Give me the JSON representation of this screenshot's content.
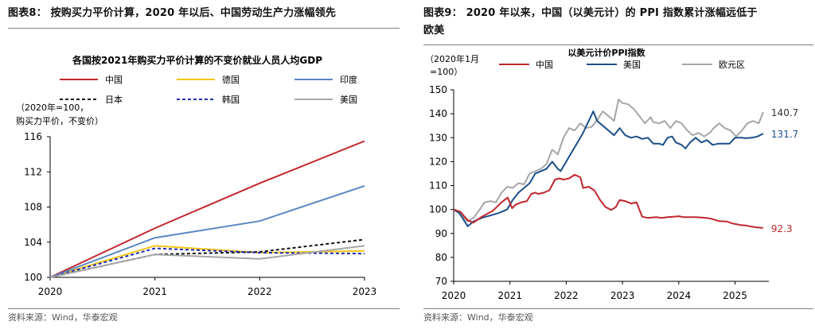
{
  "left": {
    "figure_title": "图表8：  按购买力平价计算，2020 年以后、中国劳动生产力涨幅领先",
    "source": "资料来源：Wind，华泰宏观",
    "chart_data": {
      "type": "line",
      "title": "各国按2021年购买力平价计算的不变价就业人员人均GDP",
      "unit_note": [
        "（2020年=100，",
        "购买力平价，不变价）"
      ],
      "x": [
        2020,
        2021,
        2022,
        2023
      ],
      "ylim": [
        100,
        116
      ],
      "yticks": [
        100,
        104,
        108,
        112,
        116
      ],
      "series": [
        {
          "name": "中国",
          "color": "#c0262d",
          "dash": "",
          "values": [
            100,
            105.6,
            110.7,
            115.5
          ]
        },
        {
          "name": "德国",
          "color": "#f5c518",
          "dash": "",
          "values": [
            100,
            103.6,
            102.8,
            103.0
          ]
        },
        {
          "name": "印度",
          "color": "#5b87c5",
          "dash": "",
          "values": [
            100,
            104.5,
            106.4,
            110.4
          ]
        },
        {
          "name": "日本",
          "color": "#111111",
          "dash": "4,3",
          "values": [
            100,
            102.6,
            102.9,
            104.3
          ]
        },
        {
          "name": "韩国",
          "color": "#1f2db5",
          "dash": "4,3",
          "values": [
            100,
            103.3,
            102.8,
            102.7
          ]
        },
        {
          "name": "美国",
          "color": "#a6a6a6",
          "dash": "",
          "values": [
            100,
            102.6,
            102.1,
            103.6
          ]
        }
      ]
    }
  },
  "right": {
    "figure_title_line1": "图表9：  2020 年以来，中国（以美元计）的 PPI 指数累计涨幅远低于",
    "figure_title_line2": "欧美",
    "source": "资料来源：Wind，华泰宏观",
    "chart_data": {
      "type": "line",
      "title": "以美元计价PPI指数",
      "unit_note": [
        "（2020年1月",
        "=100）"
      ],
      "xlim": [
        2020.0,
        2025.6
      ],
      "xticks": [
        2020,
        2021,
        2022,
        2023,
        2024,
        2025
      ],
      "ylim": [
        70,
        150
      ],
      "yticks": [
        70,
        80,
        90,
        100,
        110,
        120,
        130,
        140,
        150
      ],
      "series": [
        {
          "name": "中国",
          "color": "#c0262d",
          "end_label": "92.3",
          "points": [
            [
              2020.0,
              100
            ],
            [
              2020.12,
              99
            ],
            [
              2020.25,
              95.5
            ],
            [
              2020.35,
              94.5
            ],
            [
              2020.5,
              97
            ],
            [
              2020.7,
              99.5
            ],
            [
              2020.85,
              103
            ],
            [
              2020.96,
              105
            ],
            [
              2021.04,
              100.5
            ],
            [
              2021.1,
              102
            ],
            [
              2021.2,
              103
            ],
            [
              2021.3,
              103.5
            ],
            [
              2021.38,
              106.5
            ],
            [
              2021.45,
              107
            ],
            [
              2021.5,
              106.5
            ],
            [
              2021.6,
              107
            ],
            [
              2021.7,
              108
            ],
            [
              2021.8,
              112.5
            ],
            [
              2021.88,
              113
            ],
            [
              2021.95,
              112.5
            ],
            [
              2022.05,
              113
            ],
            [
              2022.15,
              114.5
            ],
            [
              2022.25,
              113.5
            ],
            [
              2022.3,
              109
            ],
            [
              2022.4,
              109.5
            ],
            [
              2022.5,
              108
            ],
            [
              2022.6,
              104
            ],
            [
              2022.7,
              101
            ],
            [
              2022.8,
              99.8
            ],
            [
              2022.88,
              101
            ],
            [
              2022.95,
              104
            ],
            [
              2023.05,
              103.5
            ],
            [
              2023.15,
              102.5
            ],
            [
              2023.25,
              103
            ],
            [
              2023.35,
              97
            ],
            [
              2023.45,
              96.5
            ],
            [
              2023.6,
              96.8
            ],
            [
              2023.7,
              96.5
            ],
            [
              2023.8,
              96.8
            ],
            [
              2023.9,
              97
            ],
            [
              2024.0,
              97.2
            ],
            [
              2024.1,
              96.8
            ],
            [
              2024.3,
              96.8
            ],
            [
              2024.5,
              96.5
            ],
            [
              2024.6,
              96
            ],
            [
              2024.7,
              95.2
            ],
            [
              2024.85,
              95
            ],
            [
              2024.95,
              94.2
            ],
            [
              2025.1,
              93.5
            ],
            [
              2025.2,
              93.3
            ],
            [
              2025.3,
              92.8
            ],
            [
              2025.4,
              92.5
            ],
            [
              2025.5,
              92.3
            ]
          ]
        },
        {
          "name": "美国",
          "color": "#1b4f8a",
          "end_label": "131.7",
          "points": [
            [
              2020.0,
              100
            ],
            [
              2020.1,
              98.5
            ],
            [
              2020.25,
              93
            ],
            [
              2020.35,
              95
            ],
            [
              2020.5,
              96.5
            ],
            [
              2020.65,
              97.5
            ],
            [
              2020.8,
              98.5
            ],
            [
              2020.95,
              100
            ],
            [
              2021.05,
              104
            ],
            [
              2021.15,
              107
            ],
            [
              2021.25,
              109
            ],
            [
              2021.35,
              111
            ],
            [
              2021.45,
              115
            ],
            [
              2021.55,
              116
            ],
            [
              2021.65,
              117
            ],
            [
              2021.75,
              120
            ],
            [
              2021.85,
              117
            ],
            [
              2021.9,
              116
            ],
            [
              2022.0,
              120
            ],
            [
              2022.1,
              124
            ],
            [
              2022.2,
              128
            ],
            [
              2022.3,
              132
            ],
            [
              2022.4,
              137
            ],
            [
              2022.48,
              141
            ],
            [
              2022.55,
              137
            ],
            [
              2022.65,
              135
            ],
            [
              2022.75,
              133
            ],
            [
              2022.85,
              131
            ],
            [
              2022.95,
              134
            ],
            [
              2023.05,
              131
            ],
            [
              2023.15,
              130
            ],
            [
              2023.25,
              130.5
            ],
            [
              2023.35,
              129.5
            ],
            [
              2023.45,
              130
            ],
            [
              2023.55,
              127.5
            ],
            [
              2023.65,
              127.5
            ],
            [
              2023.72,
              127
            ],
            [
              2023.8,
              130
            ],
            [
              2023.88,
              130.5
            ],
            [
              2023.95,
              128
            ],
            [
              2024.05,
              127
            ],
            [
              2024.12,
              125.5
            ],
            [
              2024.2,
              128
            ],
            [
              2024.3,
              130
            ],
            [
              2024.4,
              128
            ],
            [
              2024.5,
              129
            ],
            [
              2024.6,
              127
            ],
            [
              2024.7,
              127.5
            ],
            [
              2024.8,
              127.5
            ],
            [
              2024.9,
              127.5
            ],
            [
              2025.0,
              130
            ],
            [
              2025.1,
              130
            ],
            [
              2025.2,
              129.8
            ],
            [
              2025.3,
              130
            ],
            [
              2025.4,
              130.5
            ],
            [
              2025.5,
              131.7
            ]
          ]
        },
        {
          "name": "欧元区",
          "color": "#a6a6a6",
          "end_label": "140.7",
          "points": [
            [
              2020.0,
              100
            ],
            [
              2020.1,
              98.5
            ],
            [
              2020.25,
              95
            ],
            [
              2020.35,
              96.5
            ],
            [
              2020.45,
              99.5
            ],
            [
              2020.55,
              103
            ],
            [
              2020.65,
              103.5
            ],
            [
              2020.75,
              103
            ],
            [
              2020.85,
              107
            ],
            [
              2020.95,
              109.5
            ],
            [
              2021.05,
              109
            ],
            [
              2021.15,
              111
            ],
            [
              2021.25,
              110.5
            ],
            [
              2021.35,
              115
            ],
            [
              2021.45,
              116
            ],
            [
              2021.55,
              117
            ],
            [
              2021.65,
              119
            ],
            [
              2021.75,
              125
            ],
            [
              2021.85,
              123
            ],
            [
              2021.95,
              130
            ],
            [
              2022.05,
              134
            ],
            [
              2022.15,
              133
            ],
            [
              2022.25,
              136
            ],
            [
              2022.35,
              134
            ],
            [
              2022.45,
              134.5
            ],
            [
              2022.55,
              137.5
            ],
            [
              2022.65,
              141
            ],
            [
              2022.75,
              139
            ],
            [
              2022.85,
              137
            ],
            [
              2022.93,
              146
            ],
            [
              2023.0,
              144.5
            ],
            [
              2023.1,
              144
            ],
            [
              2023.2,
              142
            ],
            [
              2023.3,
              139
            ],
            [
              2023.4,
              136
            ],
            [
              2023.5,
              138.5
            ],
            [
              2023.55,
              136.5
            ],
            [
              2023.65,
              136
            ],
            [
              2023.75,
              137
            ],
            [
              2023.85,
              134
            ],
            [
              2023.95,
              137
            ],
            [
              2024.05,
              136
            ],
            [
              2024.15,
              133
            ],
            [
              2024.25,
              131
            ],
            [
              2024.35,
              132
            ],
            [
              2024.45,
              130.5
            ],
            [
              2024.55,
              132
            ],
            [
              2024.62,
              134
            ],
            [
              2024.72,
              136
            ],
            [
              2024.82,
              134
            ],
            [
              2024.92,
              133
            ],
            [
              2025.02,
              130.5
            ],
            [
              2025.12,
              133
            ],
            [
              2025.22,
              136
            ],
            [
              2025.32,
              137
            ],
            [
              2025.42,
              136
            ],
            [
              2025.5,
              140.7
            ]
          ]
        }
      ]
    }
  }
}
